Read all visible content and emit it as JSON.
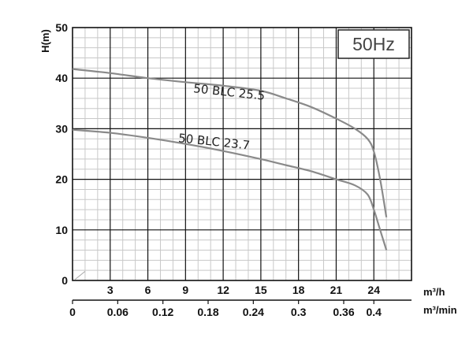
{
  "chart_data": {
    "type": "line",
    "badge": "50Hz",
    "ylabel": "H(m)",
    "xlabel_primary": "m³/h",
    "xlabel_secondary": "m³/min",
    "xlim": [
      0,
      27
    ],
    "ylim": [
      0,
      50
    ],
    "xticks_primary": [
      "3",
      "6",
      "9",
      "12",
      "15",
      "18",
      "21",
      "24"
    ],
    "xticks_primary_values": [
      3,
      6,
      9,
      12,
      15,
      18,
      21,
      24
    ],
    "xticks_secondary": [
      "0",
      "0.06",
      "0.12",
      "0.18",
      "0.24",
      "0.3",
      "0.36",
      "0.4"
    ],
    "xticks_secondary_values": [
      0,
      0.06,
      0.12,
      0.18,
      0.24,
      0.3,
      0.36,
      0.4
    ],
    "yticks": [
      "0",
      "10",
      "20",
      "30",
      "40",
      "50"
    ],
    "yticks_values": [
      0,
      10,
      20,
      30,
      40,
      50
    ],
    "grid": true,
    "series": [
      {
        "name": "50 BLC 25.5",
        "x": [
          0,
          3,
          6,
          9,
          12,
          15,
          17,
          19,
          21,
          22.5,
          23.5,
          24,
          24.5,
          25
        ],
        "y": [
          41.8,
          41,
          40,
          39.2,
          38.5,
          37.5,
          36,
          34.3,
          32,
          30,
          28,
          25.5,
          20,
          12.5
        ],
        "label_at": [
          9.6,
          37.2
        ]
      },
      {
        "name": "50 BLC 23.7",
        "x": [
          0,
          3,
          6,
          9,
          12,
          15,
          17,
          19,
          21,
          22.5,
          23.5,
          24,
          24.5,
          25
        ],
        "y": [
          29.8,
          29.2,
          28.2,
          27,
          25.6,
          24,
          22.8,
          21.6,
          20,
          18.8,
          17,
          14,
          10,
          6
        ],
        "label_at": [
          8.4,
          27.4
        ]
      }
    ]
  }
}
